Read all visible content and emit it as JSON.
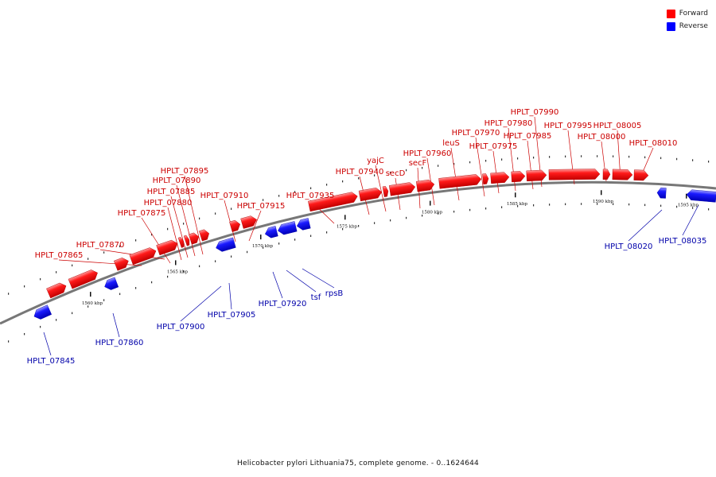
{
  "legend": {
    "forward_label": "Forward",
    "reverse_label": "Reverse",
    "forward_color": "#ff0000",
    "reverse_color": "#0000ff"
  },
  "colors": {
    "forward_label_text": "#cc0000",
    "reverse_label_text": "#0000aa",
    "backbone": "#777777"
  },
  "caption": "Helicobacter pylori Lithuania75, complete genome. - 0..1624644",
  "scale_marks": [
    {
      "label": "1560 kbp",
      "kbp": 1560
    },
    {
      "label": "1565 kbp",
      "kbp": 1565
    },
    {
      "label": "1570 kbp",
      "kbp": 1570
    },
    {
      "label": "1575 kbp",
      "kbp": 1575
    },
    {
      "label": "1580 kbp",
      "kbp": 1580
    },
    {
      "label": "1585 kbp",
      "kbp": 1585
    },
    {
      "label": "1590 kbp",
      "kbp": 1590
    },
    {
      "label": "1595 kbp",
      "kbp": 1595
    }
  ],
  "forward_genes": [
    {
      "label": "HPLT_07865"
    },
    {
      "label": "HPLT_07870"
    },
    {
      "label": "HPLT_07875"
    },
    {
      "label": "HPLT_07880"
    },
    {
      "label": "HPLT_07885"
    },
    {
      "label": "HPLT_07890"
    },
    {
      "label": "HPLT_07895"
    },
    {
      "label": "HPLT_07910"
    },
    {
      "label": "HPLT_07915"
    },
    {
      "label": "HPLT_07935"
    },
    {
      "label": "HPLT_07940"
    },
    {
      "label": "yajC"
    },
    {
      "label": "secD"
    },
    {
      "label": "secF"
    },
    {
      "label": "HPLT_07960"
    },
    {
      "label": "leuS"
    },
    {
      "label": "HPLT_07970"
    },
    {
      "label": "HPLT_07975"
    },
    {
      "label": "HPLT_07980"
    },
    {
      "label": "HPLT_07985"
    },
    {
      "label": "HPLT_07990"
    },
    {
      "label": "HPLT_07995"
    },
    {
      "label": "HPLT_08000"
    },
    {
      "label": "HPLT_08005"
    },
    {
      "label": "HPLT_08010"
    }
  ],
  "reverse_genes": [
    {
      "label": "HPLT_07845"
    },
    {
      "label": "HPLT_07860"
    },
    {
      "label": "HPLT_07900"
    },
    {
      "label": "HPLT_07905"
    },
    {
      "label": "HPLT_07920"
    },
    {
      "label": "tsf"
    },
    {
      "label": "rpsB"
    },
    {
      "label": "HPLT_08020"
    },
    {
      "label": "HPLT_08035"
    }
  ]
}
